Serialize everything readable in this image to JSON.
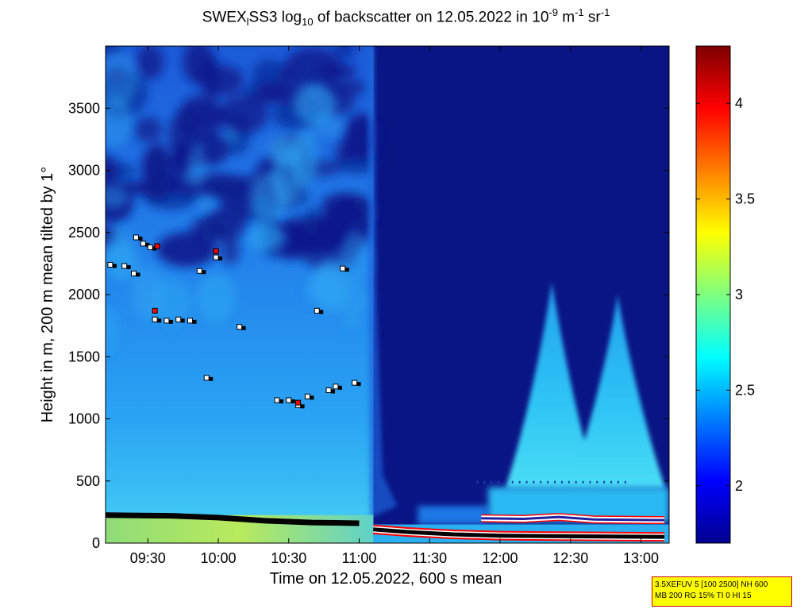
{
  "title": {
    "prefix": "SWEX",
    "sub1": "l",
    "mid": "SS3 log",
    "sub2": "10",
    "mid2": " of backscatter on 12.05.2022 in 10",
    "sup1": "-9",
    "unit1": " m",
    "sup2": "-1",
    "unit2": " sr",
    "sup3": "-1"
  },
  "settings_box": {
    "line1": "3.5XEFUV 5 [100 2500] NH 600",
    "line2": "MB 200 RG 15% TI 0 HI 15"
  },
  "colors": {
    "colormap": [
      "#00008f",
      "#0000ff",
      "#007fff",
      "#00ffff",
      "#7fff7f",
      "#ffff00",
      "#ff7f00",
      "#ff0000",
      "#7f0000"
    ],
    "background_dark": "#0a1585",
    "background_light": "#2a9cf0",
    "cloud_top_marker": "#ffffff",
    "cloud_base_marker": "#000000",
    "layer_marker": "#ff0000",
    "boundary_outline": "#ff0000"
  },
  "chart_data": {
    "type": "heatmap",
    "xlabel": "Time on 12.05.2022, 600 s mean",
    "ylabel": "Height in m, 200 m mean tilted by 1°",
    "x_ticks": [
      "09:30",
      "10:00",
      "10:30",
      "11:00",
      "11:30",
      "12:00",
      "12:30",
      "13:00"
    ],
    "x_range": [
      "09:12",
      "13:12"
    ],
    "y_ticks": [
      0,
      500,
      1000,
      1500,
      2000,
      2500,
      3000,
      3500
    ],
    "ylim": [
      0,
      4000
    ],
    "colorbar": {
      "ticks": [
        2,
        2.5,
        3,
        3.5,
        4
      ],
      "range": [
        1.7,
        4.3
      ]
    },
    "segments": [
      {
        "start": "09:12",
        "end": "11:06",
        "level": 2.6,
        "description_level_top": 2.2
      },
      {
        "start": "11:06",
        "end": "13:12",
        "level": 1.75
      }
    ],
    "plumes": [
      {
        "center": "12:22",
        "top_height": 2100,
        "base_level": 2.6
      },
      {
        "center": "12:50",
        "top_height": 2000,
        "base_level": 2.6
      }
    ],
    "cloud_markers": [
      {
        "time": "09:14",
        "height": 2240
      },
      {
        "time": "09:20",
        "height": 2230
      },
      {
        "time": "09:24",
        "height": 2170
      },
      {
        "time": "09:25",
        "height": 2460
      },
      {
        "time": "09:28",
        "height": 2410
      },
      {
        "time": "09:31",
        "height": 2380
      },
      {
        "time": "09:33",
        "height": 1800
      },
      {
        "time": "09:38",
        "height": 1790
      },
      {
        "time": "09:43",
        "height": 1800
      },
      {
        "time": "09:48",
        "height": 1790
      },
      {
        "time": "09:52",
        "height": 2190
      },
      {
        "time": "09:55",
        "height": 1330
      },
      {
        "time": "09:59",
        "height": 2300
      },
      {
        "time": "10:09",
        "height": 1740
      },
      {
        "time": "10:25",
        "height": 1150
      },
      {
        "time": "10:30",
        "height": 1150
      },
      {
        "time": "10:34",
        "height": 1110
      },
      {
        "time": "10:38",
        "height": 1180
      },
      {
        "time": "10:42",
        "height": 1870
      },
      {
        "time": "10:47",
        "height": 1230
      },
      {
        "time": "10:50",
        "height": 1260
      },
      {
        "time": "10:53",
        "height": 2210
      },
      {
        "time": "10:58",
        "height": 1290
      }
    ],
    "layer_markers": [
      {
        "time": "09:34",
        "height": 2390
      },
      {
        "time": "09:59",
        "height": 2350
      },
      {
        "time": "09:33",
        "height": 1870
      },
      {
        "time": "10:34",
        "height": 1130
      }
    ],
    "boundary_layer": [
      {
        "time": "09:12",
        "height": 225
      },
      {
        "time": "09:40",
        "height": 220
      },
      {
        "time": "10:00",
        "height": 205
      },
      {
        "time": "10:20",
        "height": 180
      },
      {
        "time": "10:40",
        "height": 165
      },
      {
        "time": "11:00",
        "height": 160
      }
    ],
    "lower_layer": [
      {
        "time": "11:06",
        "height": 110
      },
      {
        "time": "11:20",
        "height": 90
      },
      {
        "time": "11:40",
        "height": 70
      },
      {
        "time": "12:00",
        "height": 60
      },
      {
        "time": "12:30",
        "height": 55
      },
      {
        "time": "13:10",
        "height": 50
      }
    ],
    "upper_band": [
      {
        "time": "11:52",
        "height": 200
      },
      {
        "time": "12:10",
        "height": 195
      },
      {
        "time": "12:25",
        "height": 210
      },
      {
        "time": "12:40",
        "height": 190
      },
      {
        "time": "13:10",
        "height": 185
      }
    ]
  }
}
